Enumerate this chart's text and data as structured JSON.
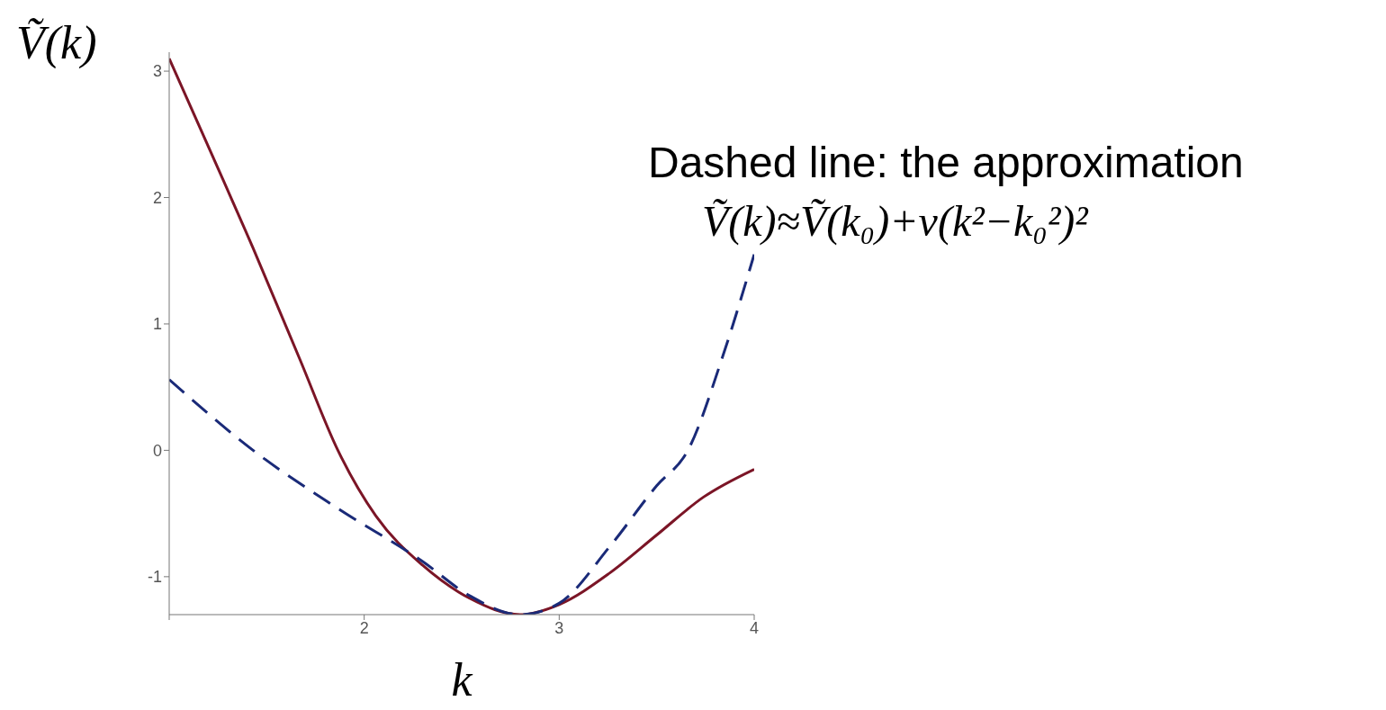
{
  "chart_data": {
    "type": "line",
    "ylabel": "Ṽ(k)",
    "xlabel": "k",
    "annotations": [
      "Dashed line: the approximation",
      "Ṽ(k)≈Ṽ(k₀)+v(k²−k₀²)²"
    ],
    "xlim": [
      1,
      4
    ],
    "xticks": [
      {
        "value": 1,
        "label": null
      },
      2,
      3,
      4
    ],
    "ylim": [
      -1.3,
      3.15
    ],
    "yticks": [
      -1,
      0,
      1,
      2,
      3
    ],
    "marker": "none",
    "series": [
      {
        "color": "#7b1526",
        "line_style": "solid",
        "x": [
          1.0,
          1.19,
          1.43,
          1.67,
          1.865,
          2.06,
          2.3,
          2.54,
          2.8,
          3.0,
          3.26,
          3.5,
          3.74,
          4.0
        ],
        "values": [
          3.1,
          2.44,
          1.6,
          0.72,
          0,
          -0.52,
          -0.91,
          -1.17,
          -1.3,
          -1.22,
          -0.97,
          -0.67,
          -0.37,
          -0.15
        ]
      },
      {
        "color": "#1a2a78",
        "line_style": "dashed",
        "x": [
          1.0,
          1.43,
          1.865,
          2.3,
          2.54,
          2.8,
          3.0,
          3.26,
          3.5,
          3.66,
          3.84,
          4.0
        ],
        "values": [
          0.56,
          0,
          -0.46,
          -0.88,
          -1.15,
          -1.3,
          -1.21,
          -0.76,
          -0.28,
          0,
          0.75,
          1.55
        ]
      }
    ]
  }
}
